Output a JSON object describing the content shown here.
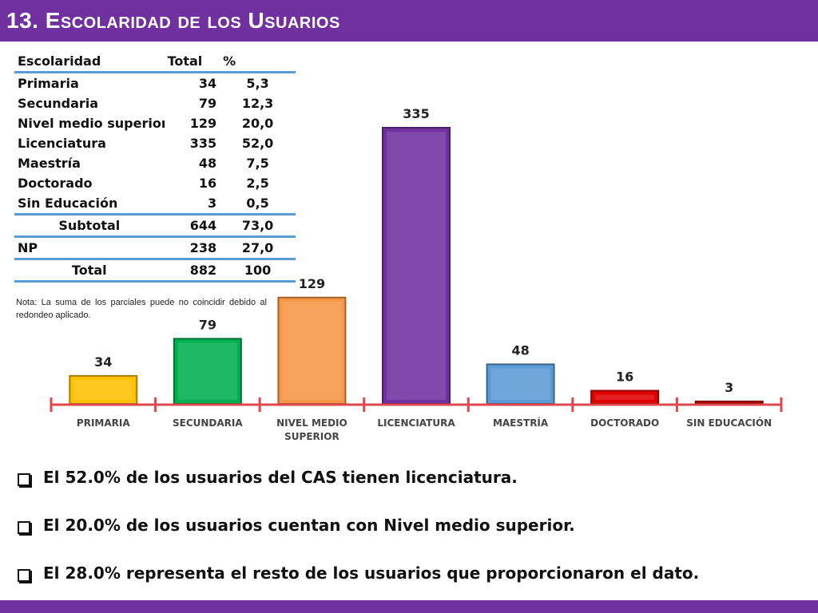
{
  "title": "13. Escolaridad de los Usuarios",
  "table": {
    "headers": [
      "Escolaridad",
      "Total",
      "%"
    ],
    "rows": [
      {
        "name": "Primaria",
        "total": "34",
        "pct": "5,3"
      },
      {
        "name": "Secundaria",
        "total": "79",
        "pct": "12,3"
      },
      {
        "name": "Nivel medio superior",
        "total": "129",
        "pct": "20,0"
      },
      {
        "name": "Licenciatura",
        "total": "335",
        "pct": "52,0"
      },
      {
        "name": "Maestría",
        "total": "48",
        "pct": "7,5"
      },
      {
        "name": "Doctorado",
        "total": "16",
        "pct": "2,5"
      },
      {
        "name": "Sin Educación",
        "total": "3",
        "pct": "0,5"
      }
    ],
    "subtotal": {
      "name": "Subtotal",
      "total": "644",
      "pct": "73,0"
    },
    "np": {
      "name": "NP",
      "total": "238",
      "pct": "27,0"
    },
    "total": {
      "name": "Total",
      "total": "882",
      "pct": "100"
    },
    "note": "Nota: La suma de los parciales puede no coincidir debido al redondeo aplicado."
  },
  "chart_data": {
    "type": "bar",
    "categories": [
      "PRIMARIA",
      "SECUNDARIA",
      "NIVEL MEDIO SUPERIOR",
      "LICENCIATURA",
      "MAESTRÍA",
      "DOCTORADO",
      "SIN EDUCACIÓN"
    ],
    "category_lines": [
      [
        "PRIMARIA"
      ],
      [
        "SECUNDARIA"
      ],
      [
        "NIVEL MEDIO",
        "SUPERIOR"
      ],
      [
        "LICENCIATURA"
      ],
      [
        "MAESTRÍA"
      ],
      [
        "DOCTORADO"
      ],
      [
        "SIN EDUCACIÓN"
      ]
    ],
    "values": [
      34,
      79,
      129,
      335,
      48,
      16,
      3
    ],
    "colors": [
      "#ffc000",
      "#00b050",
      "#f79646",
      "#7030a0",
      "#5b9bd5",
      "#e00000",
      "#c00000"
    ],
    "axis_color": "#e0474c",
    "ylim": [
      0,
      335
    ],
    "grid": false,
    "legend": "none",
    "data_labels": true
  },
  "bullets": [
    "El 52.0% de los usuarios del CAS tienen licenciatura.",
    "El 20.0% de los usuarios cuentan con Nivel medio superior.",
    "El  28.0% representa el resto de los usuarios que proporcionaron el dato."
  ],
  "colors": {
    "accent": "#7030a0",
    "table_rule": "#5b9bd5"
  }
}
